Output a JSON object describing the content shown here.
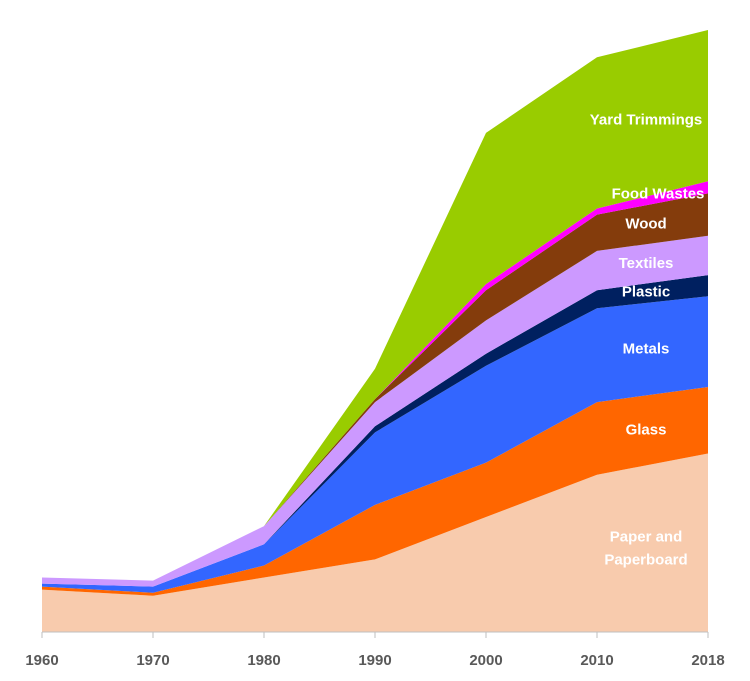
{
  "chart_data": {
    "type": "area",
    "stacked": true,
    "title": "",
    "xlabel": "",
    "ylabel": "",
    "x": [
      1960,
      1970,
      1980,
      1990,
      2000,
      2010,
      2018
    ],
    "tick_labels": [
      "1960",
      "1970",
      "1980",
      "1990",
      "2000",
      "2010",
      "2018"
    ],
    "ylim": [
      0,
      100
    ],
    "grid": false,
    "legend": "none",
    "series": [
      {
        "name": "Paper and Paperboard",
        "label_lines": [
          "Paper and",
          "Paperboard"
        ],
        "color": "#F8CBAD",
        "values": [
          7,
          6,
          9,
          12,
          19,
          26,
          29.5
        ]
      },
      {
        "name": "Glass",
        "label_lines": [
          "Glass"
        ],
        "color": "#FF6600",
        "values": [
          0.5,
          0.5,
          2,
          9,
          9,
          12,
          11
        ]
      },
      {
        "name": "Metals",
        "label_lines": [
          "Metals"
        ],
        "color": "#3366FF",
        "values": [
          0.5,
          1,
          3.5,
          12,
          16,
          15.5,
          15
        ]
      },
      {
        "name": "Plastic",
        "label_lines": [
          "Plastic"
        ],
        "color": "#002060",
        "values": [
          0,
          0,
          0,
          1,
          2,
          3,
          3.5
        ]
      },
      {
        "name": "Textiles",
        "label_lines": [
          "Textiles"
        ],
        "color": "#CC99FF",
        "values": [
          1,
          1,
          3,
          4,
          5.5,
          6.5,
          6.5
        ]
      },
      {
        "name": "Wood",
        "label_lines": [
          "Wood"
        ],
        "color": "#843C0C",
        "values": [
          0,
          0,
          0,
          0.5,
          5,
          6,
          7
        ]
      },
      {
        "name": "Food Wastes",
        "label_lines": [
          "Food Wastes"
        ],
        "color": "#FF00FF",
        "values": [
          0,
          0,
          0,
          0,
          1,
          1,
          2
        ]
      },
      {
        "name": "Yard Trimmings",
        "label_lines": [
          "Yard Trimmings"
        ],
        "color": "#99CC00",
        "values": [
          0,
          0,
          0,
          5,
          25,
          25,
          25
        ]
      }
    ]
  }
}
